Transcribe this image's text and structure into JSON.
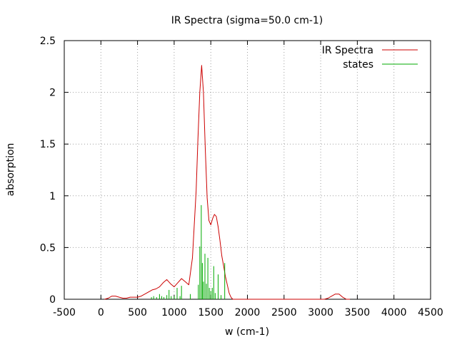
{
  "chart_data": {
    "type": "line",
    "title": "IR Spectra (sigma=50.0 cm-1)",
    "xlabel": "w (cm-1)",
    "ylabel": "absorption",
    "xlim": [
      -500,
      4500
    ],
    "ylim": [
      0,
      2.5
    ],
    "xticks": [
      -500,
      0,
      500,
      1000,
      1500,
      2000,
      2500,
      3000,
      3500,
      4000,
      4500
    ],
    "yticks": [
      0,
      0.5,
      1,
      1.5,
      2,
      2.5
    ],
    "xtick_labels": [
      "-500",
      "0",
      "500",
      "1000",
      "1500",
      "2000",
      "2500",
      "3000",
      "3500",
      "4000",
      "4500"
    ],
    "ytick_labels": [
      "0",
      "0.5",
      "1",
      "1.5",
      "2",
      "2.5"
    ],
    "grid": true,
    "legend_position": "top-right",
    "series": [
      {
        "name": "IR Spectra",
        "kind": "line",
        "color": "#cc0000",
        "x": [
          50,
          100,
          150,
          200,
          250,
          300,
          350,
          400,
          450,
          500,
          550,
          600,
          650,
          700,
          750,
          800,
          850,
          900,
          950,
          1000,
          1050,
          1100,
          1150,
          1200,
          1250,
          1300,
          1325,
          1350,
          1375,
          1400,
          1425,
          1450,
          1475,
          1500,
          1525,
          1550,
          1575,
          1600,
          1625,
          1650,
          1675,
          1700,
          1725,
          1750,
          1775,
          1800,
          1850,
          1900,
          3050,
          3100,
          3150,
          3200,
          3250,
          3300,
          3350,
          3400
        ],
        "y": [
          0.0,
          0.01,
          0.03,
          0.03,
          0.02,
          0.01,
          0.01,
          0.02,
          0.02,
          0.02,
          0.03,
          0.05,
          0.07,
          0.09,
          0.1,
          0.12,
          0.16,
          0.19,
          0.15,
          0.12,
          0.16,
          0.2,
          0.17,
          0.14,
          0.4,
          1.05,
          1.55,
          2.0,
          2.26,
          2.0,
          1.45,
          0.98,
          0.76,
          0.72,
          0.78,
          0.82,
          0.8,
          0.7,
          0.57,
          0.42,
          0.32,
          0.22,
          0.14,
          0.06,
          0.02,
          0.0,
          0.0,
          0.0,
          0.0,
          0.01,
          0.03,
          0.05,
          0.05,
          0.02,
          0.0,
          0.0
        ]
      },
      {
        "name": "states",
        "kind": "impulses",
        "color": "#00aa00",
        "x": [
          690,
          720,
          760,
          800,
          830,
          860,
          900,
          930,
          960,
          1000,
          1040,
          1080,
          1100,
          1220,
          1330,
          1350,
          1370,
          1385,
          1400,
          1420,
          1440,
          1460,
          1480,
          1500,
          1520,
          1540,
          1560,
          1600,
          1640,
          1690
        ],
        "y": [
          0.02,
          0.03,
          0.02,
          0.05,
          0.03,
          0.02,
          0.04,
          0.09,
          0.03,
          0.03,
          0.11,
          0.03,
          0.13,
          0.05,
          0.14,
          0.51,
          0.91,
          0.35,
          0.17,
          0.44,
          0.15,
          0.4,
          0.11,
          0.08,
          0.11,
          0.32,
          0.06,
          0.24,
          0.04,
          0.35
        ]
      }
    ]
  }
}
